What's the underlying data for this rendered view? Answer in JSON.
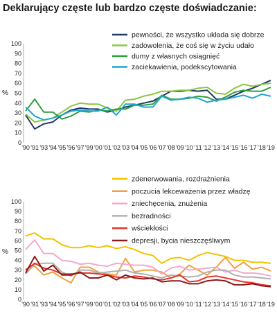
{
  "title": "Deklarujący częste lub bardzo częste doświadczanie:",
  "chart_data": [
    {
      "type": "line",
      "x": [
        "'90",
        "'91",
        "'93",
        "'94",
        "'95",
        "'96",
        "'97",
        "'99",
        "'00",
        "'01",
        "'02",
        "'03",
        "'04",
        "'05",
        "'06",
        "'07",
        "'08",
        "'09",
        "'10",
        "'11",
        "'12",
        "'13",
        "'14",
        "'15",
        "'16",
        "'17",
        "'18",
        "'19"
      ],
      "ylim": [
        0,
        100
      ],
      "yticks": [
        0,
        10,
        20,
        30,
        40,
        50,
        60,
        70,
        80,
        90,
        100
      ],
      "ylabel": "%",
      "grid": false,
      "legend": "top-right",
      "series": [
        {
          "name": "pewności, że wszystko układa się dobrze",
          "color": "#1f3864",
          "values": [
            28,
            14,
            19,
            21,
            28,
            33,
            35,
            34,
            34,
            31,
            33,
            36,
            38,
            40,
            42,
            47,
            52,
            52,
            53,
            52,
            53,
            44,
            44,
            48,
            52,
            55,
            59,
            63
          ]
        },
        {
          "name": "zadowolenia, że coś się w życiu udało",
          "color": "#8cc63f",
          "values": [
            29,
            21,
            23,
            25,
            31,
            37,
            40,
            39,
            39,
            35,
            32,
            43,
            44,
            47,
            49,
            52,
            52,
            53,
            53,
            55,
            56,
            50,
            49,
            55,
            59,
            57,
            59,
            60
          ]
        },
        {
          "name": "dumy z własnych osiągnięć",
          "color": "#2e9e3e",
          "values": [
            32,
            44,
            31,
            31,
            24,
            27,
            32,
            31,
            33,
            32,
            34,
            34,
            38,
            38,
            39,
            48,
            44,
            44,
            45,
            47,
            46,
            42,
            46,
            51,
            53,
            52,
            52,
            56
          ]
        },
        {
          "name": "zaciekawienia, podekscytowania",
          "color": "#1fa6d4",
          "values": [
            36,
            27,
            23,
            25,
            28,
            32,
            33,
            32,
            32,
            36,
            28,
            39,
            39,
            36,
            36,
            47,
            43,
            44,
            46,
            45,
            41,
            43,
            44,
            46,
            48,
            45,
            49,
            47
          ]
        }
      ]
    },
    {
      "type": "line",
      "x": [
        "'90",
        "'91",
        "'93",
        "'94",
        "'95",
        "'96",
        "'97",
        "'99",
        "'00",
        "'01",
        "'02",
        "'03",
        "'04",
        "'05",
        "'06",
        "'07",
        "'08",
        "'09",
        "'10",
        "'11",
        "'12",
        "'13",
        "'14",
        "'15",
        "'16",
        "'17",
        "'18",
        "'19"
      ],
      "ylim": [
        0,
        100
      ],
      "yticks": [
        0,
        10,
        20,
        30,
        40,
        50,
        60,
        70,
        80,
        90,
        100
      ],
      "ylabel": "%",
      "grid": false,
      "legend": "top-right",
      "series": [
        {
          "name": "zdenerwowania, rozdrażnienia",
          "color": "#f2c300",
          "values": [
            65,
            68,
            62,
            62,
            56,
            53,
            53,
            55,
            53,
            55,
            52,
            54,
            51,
            47,
            45,
            37,
            42,
            43,
            40,
            45,
            48,
            46,
            44,
            40,
            40,
            38,
            38,
            37
          ]
        },
        {
          "name": "poczucia lekceważenia przez władzę",
          "color": "#f0a040",
          "values": [
            31,
            34,
            25,
            28,
            22,
            17,
            33,
            33,
            28,
            26,
            25,
            42,
            28,
            30,
            30,
            28,
            22,
            26,
            35,
            30,
            25,
            33,
            43,
            32,
            38,
            31,
            33,
            29
          ]
        },
        {
          "name": "zniechęcenia, znużenia",
          "color": "#f4a8cc",
          "values": [
            51,
            61,
            47,
            47,
            40,
            39,
            36,
            37,
            35,
            34,
            37,
            36,
            35,
            35,
            33,
            26,
            32,
            34,
            30,
            31,
            32,
            33,
            28,
            30,
            27,
            27,
            26,
            24
          ]
        },
        {
          "name": "bezradności",
          "color": "#b0b0b0",
          "values": [
            26,
            36,
            37,
            37,
            28,
            24,
            30,
            30,
            27,
            28,
            29,
            30,
            27,
            26,
            24,
            22,
            25,
            24,
            23,
            24,
            28,
            30,
            30,
            25,
            23,
            23,
            22,
            21
          ]
        },
        {
          "name": "wściekłości",
          "color": "#e8322b",
          "values": [
            30,
            37,
            32,
            30,
            26,
            26,
            27,
            27,
            26,
            25,
            23,
            22,
            24,
            23,
            21,
            20,
            22,
            25,
            18,
            19,
            23,
            24,
            22,
            20,
            18,
            17,
            15,
            14
          ]
        },
        {
          "name": "depresji, bycia nieszczęśliwym",
          "color": "#8b1a1a",
          "values": [
            27,
            44,
            29,
            35,
            25,
            25,
            28,
            22,
            22,
            25,
            20,
            25,
            22,
            21,
            22,
            18,
            19,
            19,
            16,
            16,
            19,
            20,
            19,
            15,
            15,
            16,
            14,
            13
          ]
        }
      ]
    }
  ]
}
